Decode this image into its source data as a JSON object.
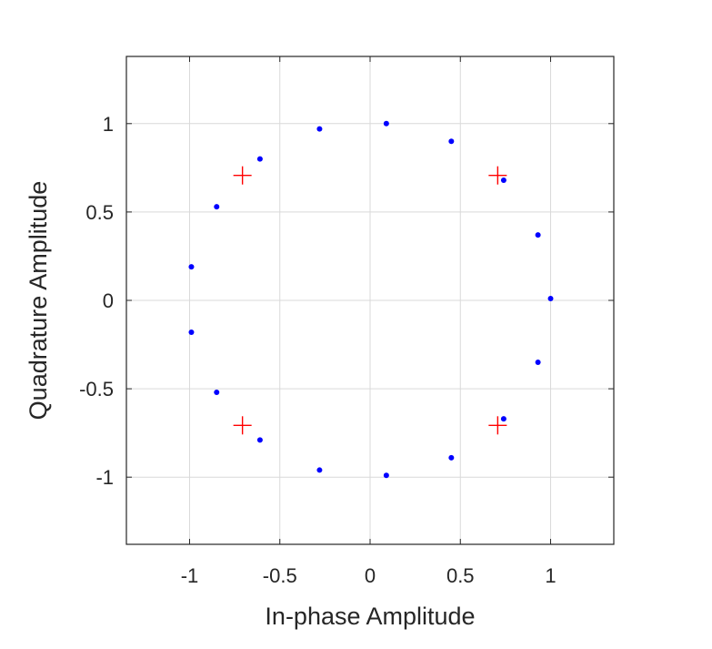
{
  "chart_data": {
    "type": "scatter",
    "title": "",
    "xlabel": "In-phase Amplitude",
    "ylabel": "Quadrature Amplitude",
    "xlim": [
      -1.35,
      1.35
    ],
    "ylim": [
      -1.38,
      1.38
    ],
    "grid": true,
    "xticks": [
      {
        "value": -1,
        "label": "-1"
      },
      {
        "value": -0.5,
        "label": "-0.5"
      },
      {
        "value": 0,
        "label": "0"
      },
      {
        "value": 0.5,
        "label": "0.5"
      },
      {
        "value": 1,
        "label": "1"
      }
    ],
    "yticks": [
      {
        "value": 1,
        "label": "1"
      },
      {
        "value": 0.5,
        "label": "0.5"
      },
      {
        "value": 0,
        "label": "0"
      },
      {
        "value": -0.5,
        "label": "-0.5"
      },
      {
        "value": -1,
        "label": "-1"
      }
    ],
    "series": [
      {
        "marker": "dot",
        "color": "#0000ff",
        "points": [
          {
            "x": 0.09,
            "y": 1.0
          },
          {
            "x": 0.45,
            "y": 0.9
          },
          {
            "x": 0.74,
            "y": 0.68
          },
          {
            "x": 0.93,
            "y": 0.37
          },
          {
            "x": 1.0,
            "y": 0.01
          },
          {
            "x": 0.93,
            "y": -0.35
          },
          {
            "x": 0.74,
            "y": -0.67
          },
          {
            "x": 0.45,
            "y": -0.89
          },
          {
            "x": 0.09,
            "y": -0.99
          },
          {
            "x": -0.28,
            "y": -0.96
          },
          {
            "x": -0.61,
            "y": -0.79
          },
          {
            "x": -0.85,
            "y": -0.52
          },
          {
            "x": -0.99,
            "y": -0.18
          },
          {
            "x": -0.99,
            "y": 0.19
          },
          {
            "x": -0.85,
            "y": 0.53
          },
          {
            "x": -0.61,
            "y": 0.8
          },
          {
            "x": -0.28,
            "y": 0.97
          }
        ]
      },
      {
        "marker": "plus",
        "color": "#ff0000",
        "points": [
          {
            "x": 0.707,
            "y": 0.707
          },
          {
            "x": -0.707,
            "y": 0.707
          },
          {
            "x": -0.707,
            "y": -0.707
          },
          {
            "x": 0.707,
            "y": -0.707
          }
        ]
      }
    ]
  }
}
